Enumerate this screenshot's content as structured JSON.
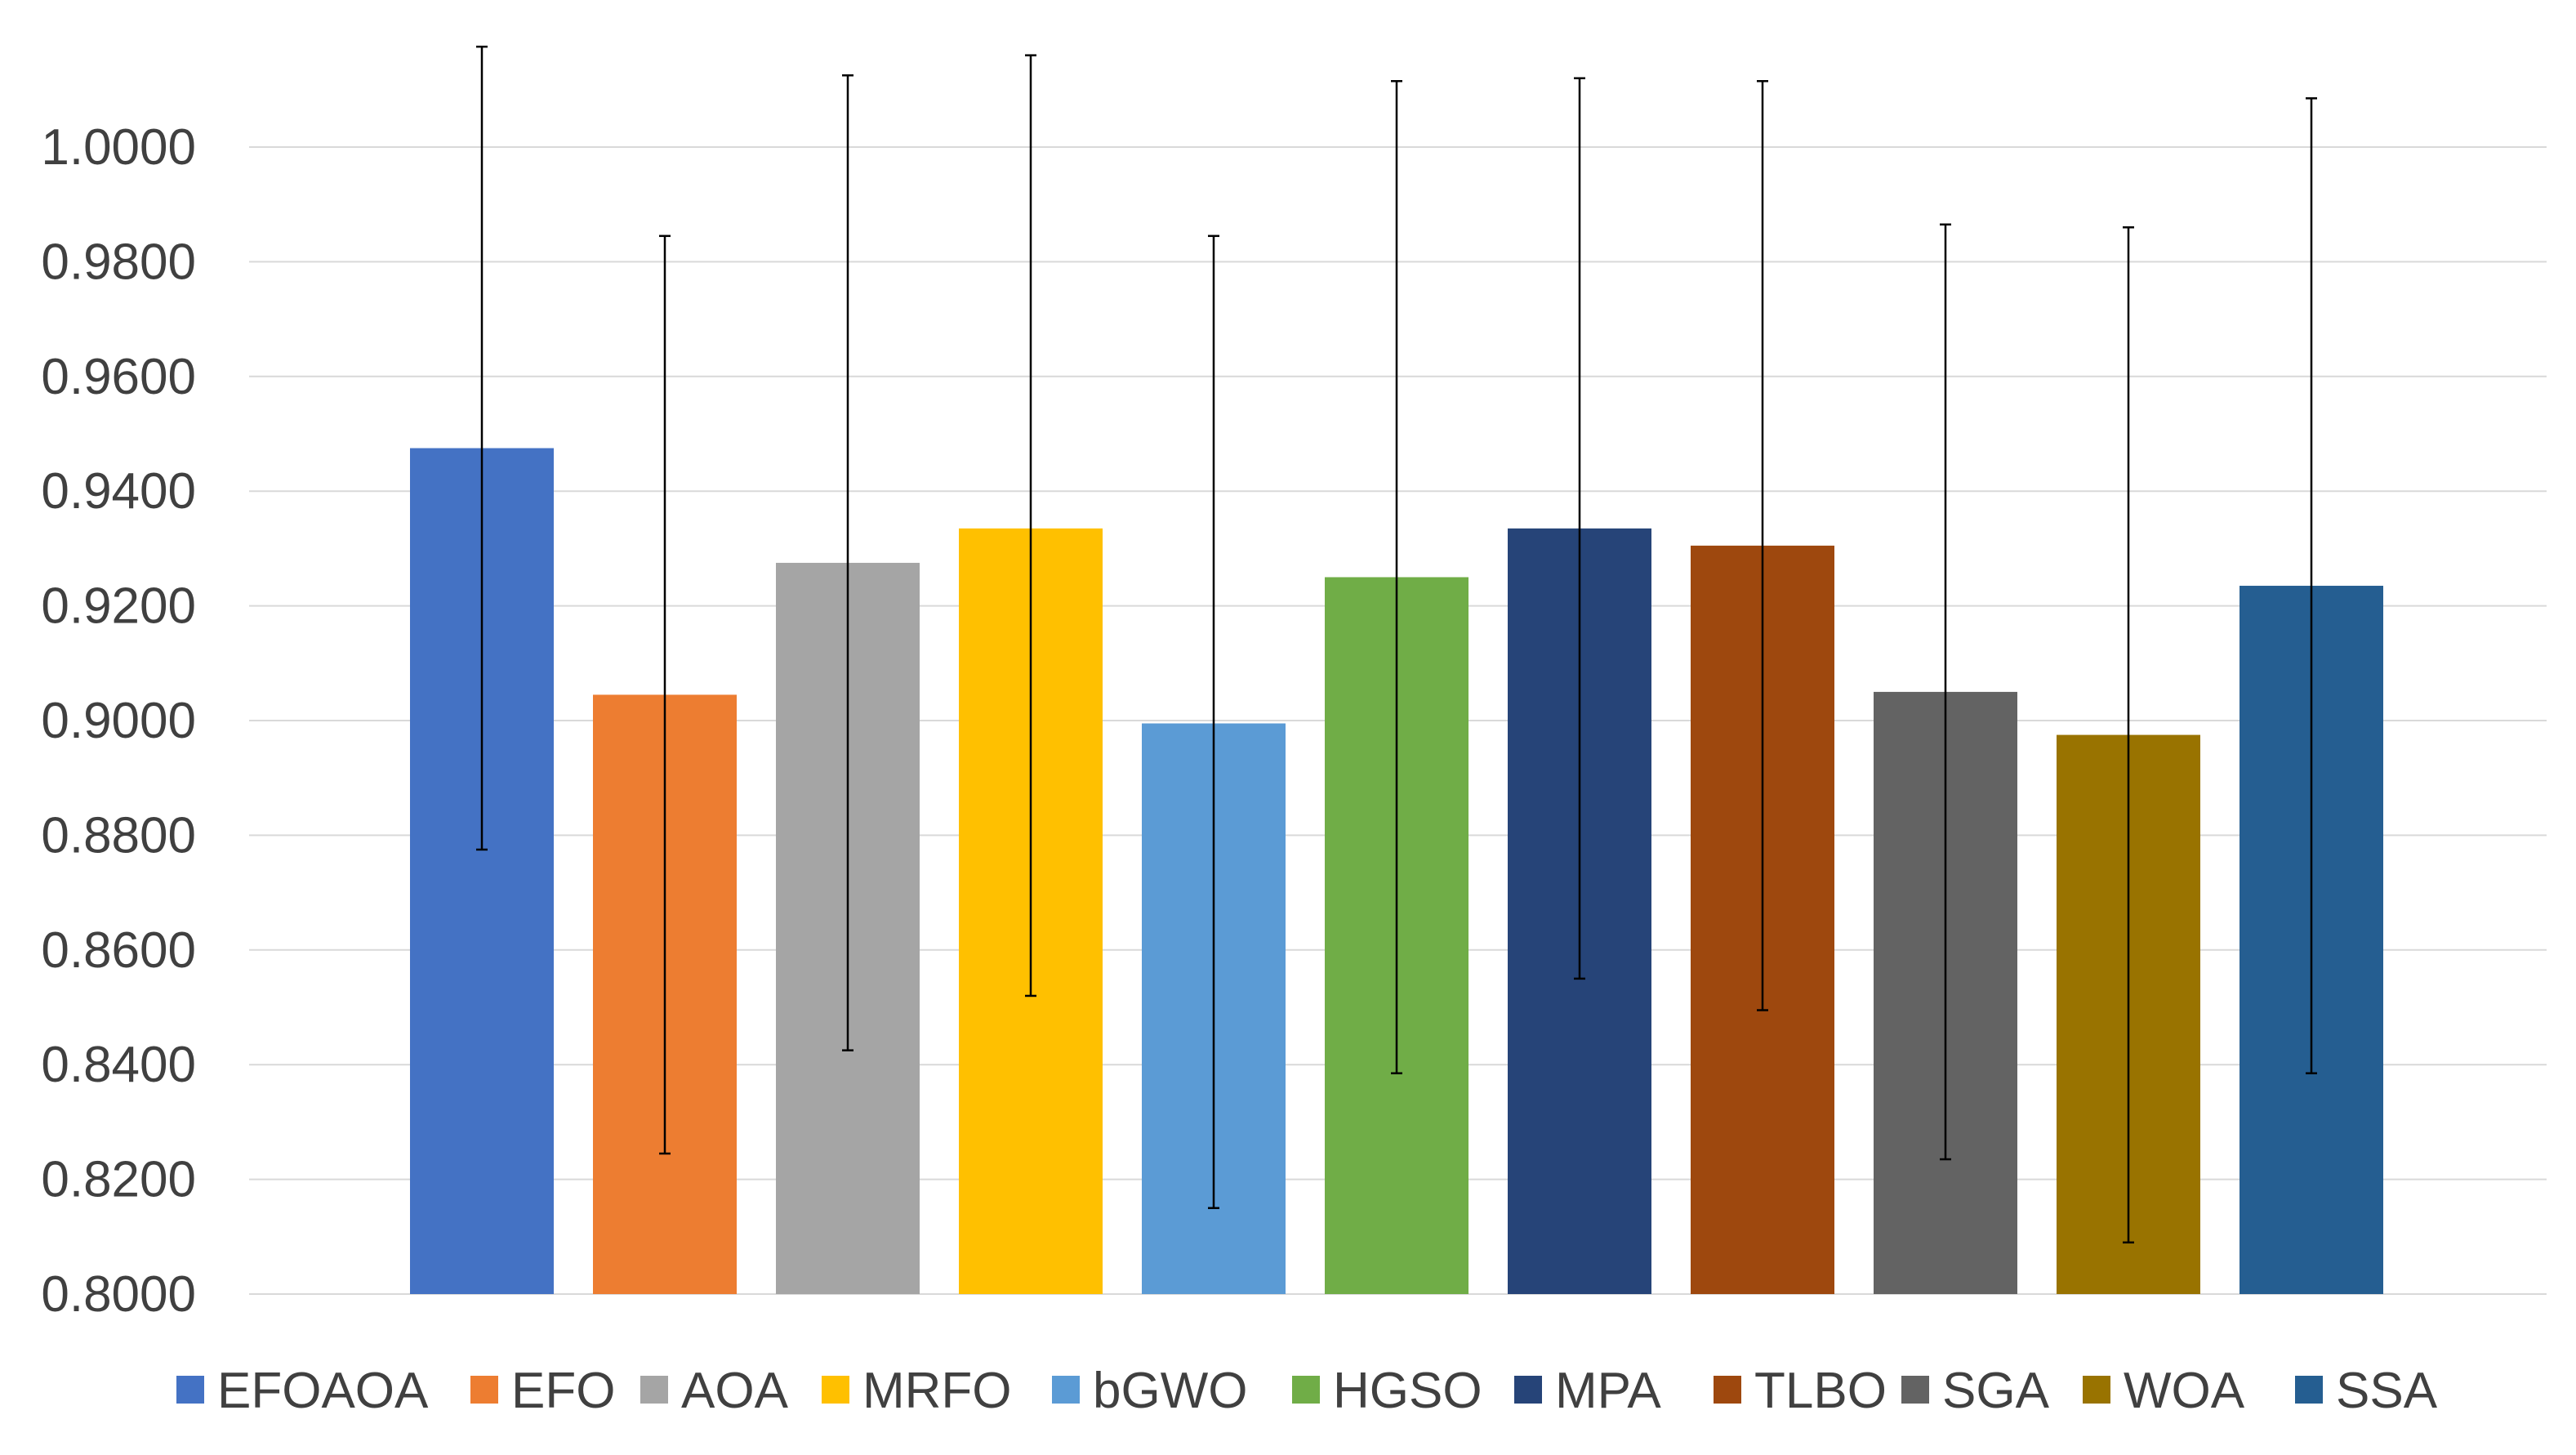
{
  "chart_data": {
    "type": "bar",
    "title": "",
    "xlabel": "",
    "ylabel": "",
    "ylim": [
      0.8,
      1.02
    ],
    "yticks": [
      "0.8000",
      "0.8200",
      "0.8400",
      "0.8600",
      "0.8800",
      "0.9000",
      "0.9200",
      "0.9400",
      "0.9600",
      "0.9800",
      "1.0000"
    ],
    "grid": true,
    "legend_position": "bottom",
    "bars": [
      {
        "name": "EFOAOA",
        "value": 0.9475,
        "err_low": 0.8775,
        "err_high": 1.0175,
        "color": "#4472C4"
      },
      {
        "name": "EFO",
        "value": 0.9045,
        "err_low": 0.8245,
        "err_high": 0.9845,
        "color": "#ED7D31"
      },
      {
        "name": "AOA",
        "value": 0.9275,
        "err_low": 0.8425,
        "err_high": 1.0125,
        "color": "#A5A5A5"
      },
      {
        "name": "MRFO",
        "value": 0.9335,
        "err_low": 0.852,
        "err_high": 1.016,
        "color": "#FFC000"
      },
      {
        "name": "bGWO",
        "value": 0.8995,
        "err_low": 0.815,
        "err_high": 0.9845,
        "color": "#5B9BD5"
      },
      {
        "name": "HGSO",
        "value": 0.925,
        "err_low": 0.8385,
        "err_high": 1.0115,
        "color": "#70AD47"
      },
      {
        "name": "MPA",
        "value": 0.9335,
        "err_low": 0.855,
        "err_high": 1.012,
        "color": "#264478"
      },
      {
        "name": "TLBO",
        "value": 0.9305,
        "err_low": 0.8495,
        "err_high": 1.0115,
        "color": "#9E480E"
      },
      {
        "name": "SGA",
        "value": 0.905,
        "err_low": 0.8235,
        "err_high": 0.9865,
        "color": "#636363"
      },
      {
        "name": "WOA",
        "value": 0.8975,
        "err_low": 0.809,
        "err_high": 0.986,
        "color": "#997300"
      },
      {
        "name": "SSA",
        "value": 0.9235,
        "err_low": 0.8385,
        "err_high": 1.0085,
        "color": "#255E91"
      }
    ],
    "gridline_color": "#D9D9D9",
    "errorbar_color": "#000000"
  }
}
